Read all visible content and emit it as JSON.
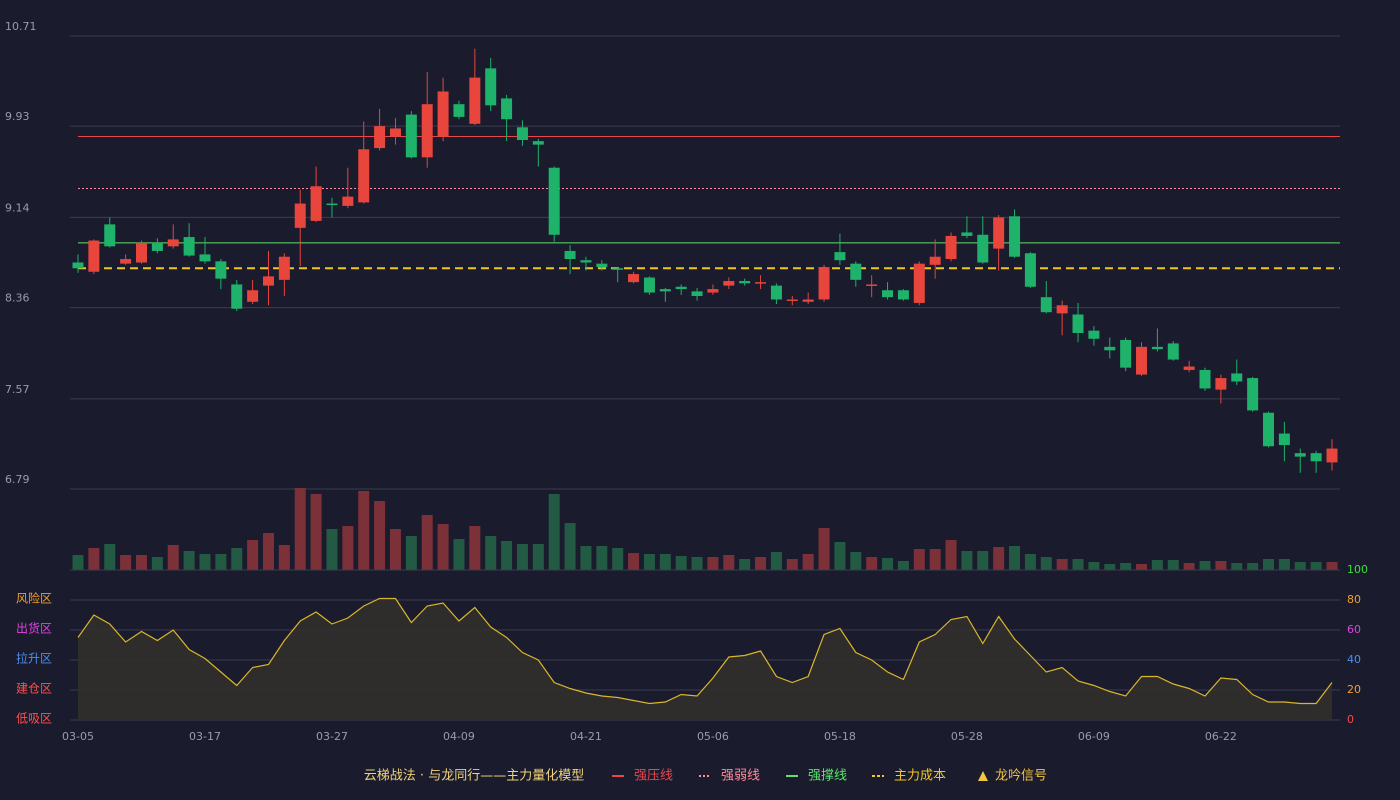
{
  "chart_data": {
    "type": "candlestick",
    "subtitle": "云梯战法 · 与龙同行——主力量化模型",
    "categories": [
      "03-05",
      null,
      null,
      null,
      null,
      null,
      null,
      null,
      "03-17",
      null,
      null,
      null,
      null,
      null,
      null,
      null,
      "03-27",
      null,
      null,
      null,
      null,
      null,
      null,
      null,
      "04-09",
      null,
      null,
      null,
      null,
      null,
      null,
      null,
      "04-21",
      null,
      null,
      null,
      null,
      null,
      null,
      null,
      "05-06",
      null,
      null,
      null,
      null,
      null,
      null,
      null,
      "05-18",
      null,
      null,
      null,
      null,
      null,
      null,
      null,
      "05-28",
      null,
      null,
      null,
      null,
      null,
      null,
      null,
      "06-09",
      null,
      null,
      null,
      null,
      null,
      null,
      null,
      "06-22",
      null,
      null,
      null,
      null,
      null,
      null,
      null
    ],
    "open": [
      8.75,
      8.67,
      9.08,
      8.74,
      8.75,
      8.92,
      8.89,
      8.97,
      8.82,
      8.76,
      8.56,
      8.41,
      8.55,
      8.6,
      9.05,
      9.11,
      9.26,
      9.24,
      9.27,
      9.74,
      9.84,
      10.03,
      9.66,
      9.84,
      10.12,
      9.95,
      10.43,
      10.17,
      9.92,
      9.8,
      9.57,
      8.85,
      8.77,
      8.74,
      8.7,
      8.58,
      8.62,
      8.52,
      8.54,
      8.5,
      8.49,
      8.55,
      8.59,
      8.57,
      8.55,
      8.42,
      8.41,
      8.43,
      8.84,
      8.74,
      8.55,
      8.51,
      8.51,
      8.4,
      8.73,
      8.78,
      9.01,
      8.99,
      8.87,
      9.15,
      8.83,
      8.45,
      8.31,
      8.3,
      8.16,
      8.02,
      8.08,
      7.78,
      8.02,
      8.05,
      7.82,
      7.82,
      7.65,
      7.79,
      7.75,
      7.45,
      7.27,
      7.1,
      7.1,
      7.02
    ],
    "high": [
      8.82,
      8.95,
      9.14,
      8.82,
      8.94,
      8.96,
      9.08,
      9.09,
      8.97,
      8.78,
      8.6,
      8.6,
      8.85,
      8.83,
      9.38,
      9.58,
      9.31,
      9.57,
      9.97,
      10.08,
      10.0,
      10.06,
      10.4,
      10.35,
      10.15,
      10.6,
      10.52,
      10.2,
      9.98,
      9.82,
      9.58,
      8.9,
      8.8,
      8.77,
      8.71,
      8.67,
      8.63,
      8.53,
      8.56,
      8.53,
      8.56,
      8.62,
      8.61,
      8.64,
      8.57,
      8.46,
      8.49,
      8.73,
      9.0,
      8.76,
      8.64,
      8.58,
      8.52,
      8.76,
      8.95,
      9.01,
      9.15,
      9.15,
      9.16,
      9.21,
      8.84,
      8.59,
      8.42,
      8.4,
      8.2,
      8.1,
      8.1,
      8.06,
      8.18,
      8.07,
      7.9,
      7.84,
      7.78,
      7.91,
      7.76,
      7.46,
      7.37,
      7.14,
      7.12,
      7.22
    ],
    "low": [
      8.66,
      8.65,
      8.88,
      8.73,
      8.74,
      8.83,
      8.87,
      8.8,
      8.74,
      8.52,
      8.33,
      8.39,
      8.38,
      8.46,
      8.72,
      9.1,
      9.14,
      9.22,
      9.26,
      9.72,
      9.77,
      9.65,
      9.57,
      9.8,
      9.99,
      9.94,
      10.06,
      9.8,
      9.76,
      9.58,
      8.93,
      8.65,
      8.68,
      8.68,
      8.58,
      8.57,
      8.47,
      8.41,
      8.47,
      8.42,
      8.47,
      8.52,
      8.55,
      8.52,
      8.39,
      8.38,
      8.39,
      8.41,
      8.73,
      8.54,
      8.45,
      8.43,
      8.42,
      8.38,
      8.61,
      8.76,
      8.96,
      8.74,
      8.68,
      8.79,
      8.53,
      8.31,
      8.12,
      8.06,
      8.03,
      7.92,
      7.81,
      7.77,
      7.98,
      7.9,
      7.8,
      7.64,
      7.53,
      7.69,
      7.46,
      7.15,
      7.03,
      6.93,
      6.93,
      6.95
    ],
    "close": [
      8.7,
      8.94,
      8.89,
      8.78,
      8.92,
      8.85,
      8.95,
      8.81,
      8.76,
      8.61,
      8.35,
      8.51,
      8.63,
      8.8,
      9.26,
      9.41,
      9.25,
      9.32,
      9.73,
      9.93,
      9.91,
      9.66,
      10.12,
      10.23,
      10.01,
      10.35,
      10.11,
      9.99,
      9.81,
      9.77,
      8.99,
      8.78,
      8.75,
      8.71,
      8.69,
      8.65,
      8.49,
      8.5,
      8.52,
      8.46,
      8.52,
      8.59,
      8.57,
      8.58,
      8.43,
      8.43,
      8.43,
      8.71,
      8.77,
      8.6,
      8.56,
      8.45,
      8.43,
      8.74,
      8.8,
      8.98,
      8.98,
      8.75,
      9.14,
      8.8,
      8.54,
      8.32,
      8.38,
      8.14,
      8.09,
      7.99,
      7.84,
      8.02,
      8.0,
      7.91,
      7.85,
      7.66,
      7.75,
      7.72,
      7.47,
      7.16,
      7.17,
      7.07,
      7.03,
      7.14
    ],
    "up_color": "#e8453c",
    "down_color": "#1fb26a",
    "ylim": [
      6.79,
      10.71
    ],
    "yticks": [
      6.79,
      7.57,
      8.36,
      9.14,
      9.93,
      10.71
    ],
    "grid": true,
    "hlines": [
      {
        "name": "强压线",
        "value": 9.84,
        "color": "#e8464c",
        "style": "solid"
      },
      {
        "name": "强弱线",
        "value": 9.39,
        "color": "#ff8c9c",
        "style": "dotted"
      },
      {
        "name": "强撑线",
        "value": 8.92,
        "color": "#5ee36a",
        "style": "solid"
      },
      {
        "name": "主力成本",
        "value": 8.7,
        "color": "#f2c61f",
        "style": "dashed"
      }
    ],
    "signal": {
      "name": "龙吟信号",
      "color": "#f5c242"
    },
    "volume": {
      "values": [
        15,
        22,
        26,
        15,
        15,
        13,
        25,
        19,
        16,
        16,
        22,
        30,
        37,
        25,
        82,
        76,
        41,
        44,
        79,
        69,
        41,
        34,
        55,
        46,
        31,
        44,
        34,
        29,
        26,
        26,
        76,
        47,
        24,
        24,
        22,
        17,
        16,
        16,
        14,
        13,
        13,
        15,
        11,
        13,
        18,
        11,
        16,
        42,
        28,
        18,
        13,
        12,
        9,
        21,
        21,
        30,
        19,
        19,
        23,
        24,
        16,
        13,
        11,
        11,
        8,
        6,
        7,
        6,
        10,
        10,
        7,
        9,
        9,
        7,
        7,
        11,
        11,
        8,
        8,
        8
      ],
      "up_color": "#7c3138",
      "down_color": "#235a44"
    },
    "indicator": {
      "type": "line",
      "values": [
        55,
        70,
        64,
        52,
        59,
        53,
        60,
        47,
        41,
        32,
        23,
        35,
        37,
        53,
        66,
        72,
        64,
        68,
        76,
        81,
        81,
        65,
        76,
        78,
        66,
        75,
        62,
        55,
        45,
        40,
        25,
        21,
        18,
        16,
        15,
        13,
        11,
        12,
        17,
        16,
        28,
        42,
        43,
        46,
        29,
        25,
        29,
        57,
        61,
        45,
        40,
        32,
        27,
        52,
        57,
        67,
        69,
        51,
        69,
        54,
        43,
        32,
        35,
        26,
        23,
        19,
        16,
        29,
        29,
        24,
        21,
        16,
        28,
        27,
        17,
        12,
        12,
        11,
        11,
        25
      ],
      "color": "#d9b629",
      "ylim": [
        0,
        100
      ],
      "yticks": [
        0,
        20,
        40,
        60,
        80,
        100
      ],
      "ytick_colors": [
        "#ff4a4a",
        "#f0a030",
        "#4a8ff0",
        "#e044e0",
        "#f0a030",
        "#3ce03c"
      ],
      "zones": [
        {
          "value": 80,
          "label": "风险区",
          "color": "#f0a030"
        },
        {
          "value": 60,
          "label": "出货区",
          "color": "#e044e0"
        },
        {
          "value": 40,
          "label": "拉升区",
          "color": "#4a8ff0"
        },
        {
          "value": 20,
          "label": "建仓区",
          "color": "#ff5050"
        },
        {
          "value": 0,
          "label": "低吸区",
          "color": "#ff5050"
        }
      ]
    }
  }
}
